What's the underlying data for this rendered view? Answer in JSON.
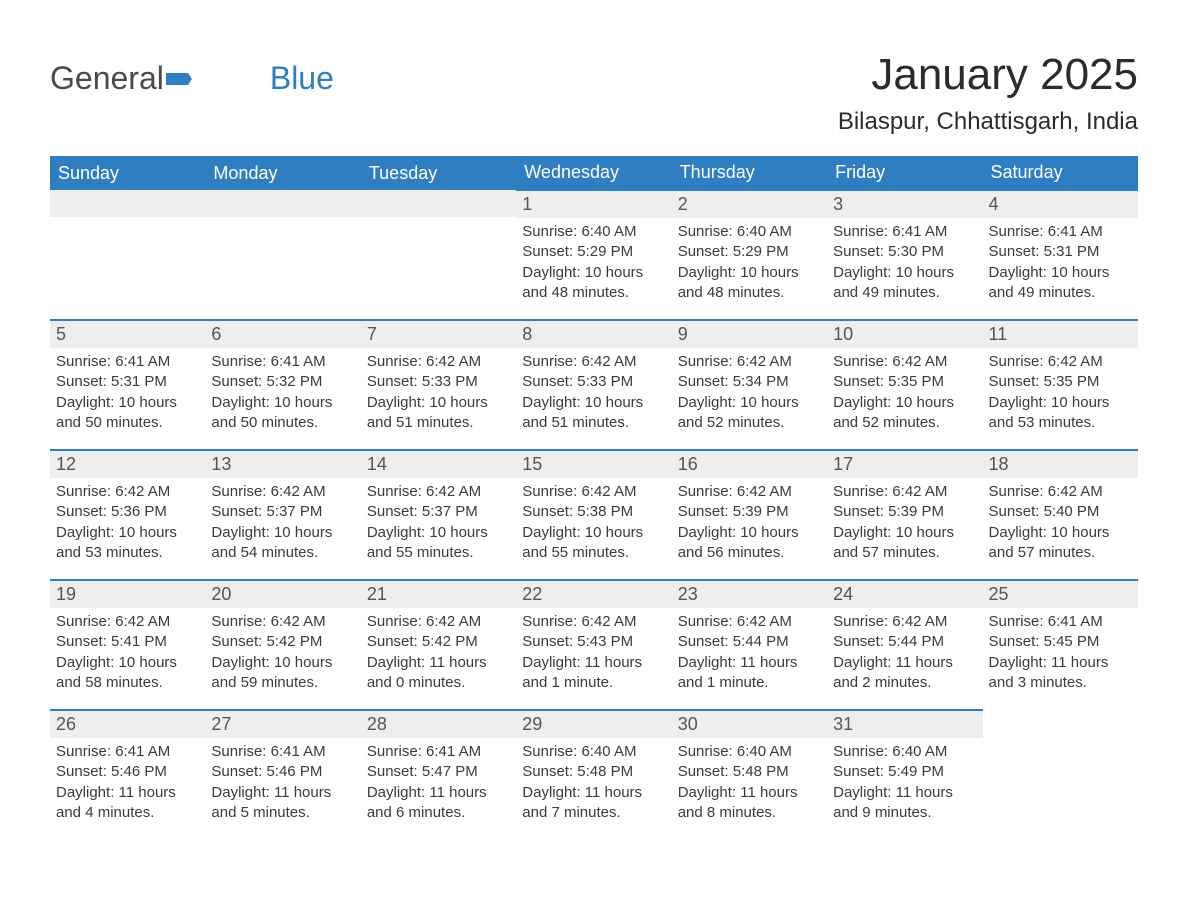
{
  "logo": {
    "text_gray": "General",
    "text_blue": "Blue"
  },
  "title": "January 2025",
  "location": "Bilaspur, Chhattisgarh, India",
  "colors": {
    "accent": "#2f7ec2",
    "header_bg": "#2f7ec2",
    "daynum_bg": "#eeeeee",
    "text": "#333333"
  },
  "weekdays": [
    "Sunday",
    "Monday",
    "Tuesday",
    "Wednesday",
    "Thursday",
    "Friday",
    "Saturday"
  ],
  "grid": [
    [
      null,
      null,
      null,
      {
        "n": "1",
        "sr": "Sunrise: 6:40 AM",
        "ss": "Sunset: 5:29 PM",
        "d1": "Daylight: 10 hours",
        "d2": "and 48 minutes."
      },
      {
        "n": "2",
        "sr": "Sunrise: 6:40 AM",
        "ss": "Sunset: 5:29 PM",
        "d1": "Daylight: 10 hours",
        "d2": "and 48 minutes."
      },
      {
        "n": "3",
        "sr": "Sunrise: 6:41 AM",
        "ss": "Sunset: 5:30 PM",
        "d1": "Daylight: 10 hours",
        "d2": "and 49 minutes."
      },
      {
        "n": "4",
        "sr": "Sunrise: 6:41 AM",
        "ss": "Sunset: 5:31 PM",
        "d1": "Daylight: 10 hours",
        "d2": "and 49 minutes."
      }
    ],
    [
      {
        "n": "5",
        "sr": "Sunrise: 6:41 AM",
        "ss": "Sunset: 5:31 PM",
        "d1": "Daylight: 10 hours",
        "d2": "and 50 minutes."
      },
      {
        "n": "6",
        "sr": "Sunrise: 6:41 AM",
        "ss": "Sunset: 5:32 PM",
        "d1": "Daylight: 10 hours",
        "d2": "and 50 minutes."
      },
      {
        "n": "7",
        "sr": "Sunrise: 6:42 AM",
        "ss": "Sunset: 5:33 PM",
        "d1": "Daylight: 10 hours",
        "d2": "and 51 minutes."
      },
      {
        "n": "8",
        "sr": "Sunrise: 6:42 AM",
        "ss": "Sunset: 5:33 PM",
        "d1": "Daylight: 10 hours",
        "d2": "and 51 minutes."
      },
      {
        "n": "9",
        "sr": "Sunrise: 6:42 AM",
        "ss": "Sunset: 5:34 PM",
        "d1": "Daylight: 10 hours",
        "d2": "and 52 minutes."
      },
      {
        "n": "10",
        "sr": "Sunrise: 6:42 AM",
        "ss": "Sunset: 5:35 PM",
        "d1": "Daylight: 10 hours",
        "d2": "and 52 minutes."
      },
      {
        "n": "11",
        "sr": "Sunrise: 6:42 AM",
        "ss": "Sunset: 5:35 PM",
        "d1": "Daylight: 10 hours",
        "d2": "and 53 minutes."
      }
    ],
    [
      {
        "n": "12",
        "sr": "Sunrise: 6:42 AM",
        "ss": "Sunset: 5:36 PM",
        "d1": "Daylight: 10 hours",
        "d2": "and 53 minutes."
      },
      {
        "n": "13",
        "sr": "Sunrise: 6:42 AM",
        "ss": "Sunset: 5:37 PM",
        "d1": "Daylight: 10 hours",
        "d2": "and 54 minutes."
      },
      {
        "n": "14",
        "sr": "Sunrise: 6:42 AM",
        "ss": "Sunset: 5:37 PM",
        "d1": "Daylight: 10 hours",
        "d2": "and 55 minutes."
      },
      {
        "n": "15",
        "sr": "Sunrise: 6:42 AM",
        "ss": "Sunset: 5:38 PM",
        "d1": "Daylight: 10 hours",
        "d2": "and 55 minutes."
      },
      {
        "n": "16",
        "sr": "Sunrise: 6:42 AM",
        "ss": "Sunset: 5:39 PM",
        "d1": "Daylight: 10 hours",
        "d2": "and 56 minutes."
      },
      {
        "n": "17",
        "sr": "Sunrise: 6:42 AM",
        "ss": "Sunset: 5:39 PM",
        "d1": "Daylight: 10 hours",
        "d2": "and 57 minutes."
      },
      {
        "n": "18",
        "sr": "Sunrise: 6:42 AM",
        "ss": "Sunset: 5:40 PM",
        "d1": "Daylight: 10 hours",
        "d2": "and 57 minutes."
      }
    ],
    [
      {
        "n": "19",
        "sr": "Sunrise: 6:42 AM",
        "ss": "Sunset: 5:41 PM",
        "d1": "Daylight: 10 hours",
        "d2": "and 58 minutes."
      },
      {
        "n": "20",
        "sr": "Sunrise: 6:42 AM",
        "ss": "Sunset: 5:42 PM",
        "d1": "Daylight: 10 hours",
        "d2": "and 59 minutes."
      },
      {
        "n": "21",
        "sr": "Sunrise: 6:42 AM",
        "ss": "Sunset: 5:42 PM",
        "d1": "Daylight: 11 hours",
        "d2": "and 0 minutes."
      },
      {
        "n": "22",
        "sr": "Sunrise: 6:42 AM",
        "ss": "Sunset: 5:43 PM",
        "d1": "Daylight: 11 hours",
        "d2": "and 1 minute."
      },
      {
        "n": "23",
        "sr": "Sunrise: 6:42 AM",
        "ss": "Sunset: 5:44 PM",
        "d1": "Daylight: 11 hours",
        "d2": "and 1 minute."
      },
      {
        "n": "24",
        "sr": "Sunrise: 6:42 AM",
        "ss": "Sunset: 5:44 PM",
        "d1": "Daylight: 11 hours",
        "d2": "and 2 minutes."
      },
      {
        "n": "25",
        "sr": "Sunrise: 6:41 AM",
        "ss": "Sunset: 5:45 PM",
        "d1": "Daylight: 11 hours",
        "d2": "and 3 minutes."
      }
    ],
    [
      {
        "n": "26",
        "sr": "Sunrise: 6:41 AM",
        "ss": "Sunset: 5:46 PM",
        "d1": "Daylight: 11 hours",
        "d2": "and 4 minutes."
      },
      {
        "n": "27",
        "sr": "Sunrise: 6:41 AM",
        "ss": "Sunset: 5:46 PM",
        "d1": "Daylight: 11 hours",
        "d2": "and 5 minutes."
      },
      {
        "n": "28",
        "sr": "Sunrise: 6:41 AM",
        "ss": "Sunset: 5:47 PM",
        "d1": "Daylight: 11 hours",
        "d2": "and 6 minutes."
      },
      {
        "n": "29",
        "sr": "Sunrise: 6:40 AM",
        "ss": "Sunset: 5:48 PM",
        "d1": "Daylight: 11 hours",
        "d2": "and 7 minutes."
      },
      {
        "n": "30",
        "sr": "Sunrise: 6:40 AM",
        "ss": "Sunset: 5:48 PM",
        "d1": "Daylight: 11 hours",
        "d2": "and 8 minutes."
      },
      {
        "n": "31",
        "sr": "Sunrise: 6:40 AM",
        "ss": "Sunset: 5:49 PM",
        "d1": "Daylight: 11 hours",
        "d2": "and 9 minutes."
      },
      null
    ]
  ]
}
